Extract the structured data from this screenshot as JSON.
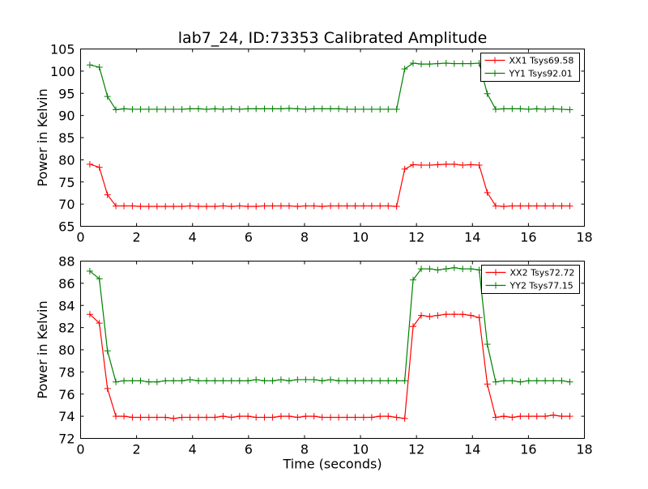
{
  "title": "lab7_24, ID:73353 Calibrated Amplitude",
  "chart_data": [
    {
      "type": "line",
      "xlabel": "",
      "ylabel": "Power in Kelvin",
      "xlim": [
        0,
        18
      ],
      "ylim": [
        65,
        105
      ],
      "xticks": [
        0,
        2,
        4,
        6,
        8,
        10,
        12,
        14,
        16,
        18
      ],
      "yticks": [
        65,
        70,
        75,
        80,
        85,
        90,
        95,
        100,
        105
      ],
      "grid": false,
      "legend_position": "top-right",
      "x": [
        0.33,
        0.67,
        0.96,
        1.26,
        1.55,
        1.85,
        2.14,
        2.44,
        2.73,
        3.03,
        3.32,
        3.62,
        3.91,
        4.21,
        4.5,
        4.8,
        5.09,
        5.39,
        5.68,
        5.98,
        6.27,
        6.57,
        6.86,
        7.16,
        7.45,
        7.75,
        8.04,
        8.34,
        8.63,
        8.93,
        9.22,
        9.52,
        9.81,
        10.11,
        10.4,
        10.7,
        10.99,
        11.29,
        11.58,
        11.88,
        12.17,
        12.47,
        12.76,
        13.06,
        13.35,
        13.65,
        13.94,
        14.24,
        14.53,
        14.83,
        15.12,
        15.42,
        15.71,
        16.01,
        16.3,
        16.6,
        16.89,
        17.19,
        17.48
      ],
      "series": [
        {
          "name": "XX1 Tsys69.58",
          "color": "#ff0000",
          "values": [
            79.0,
            78.3,
            72.1,
            69.6,
            69.6,
            69.6,
            69.5,
            69.5,
            69.5,
            69.5,
            69.5,
            69.5,
            69.6,
            69.5,
            69.5,
            69.5,
            69.6,
            69.5,
            69.6,
            69.5,
            69.5,
            69.6,
            69.6,
            69.6,
            69.6,
            69.5,
            69.6,
            69.6,
            69.5,
            69.6,
            69.6,
            69.6,
            69.6,
            69.6,
            69.6,
            69.6,
            69.6,
            69.5,
            77.9,
            78.9,
            78.8,
            78.8,
            78.9,
            79.0,
            79.0,
            78.8,
            78.9,
            78.8,
            72.6,
            69.6,
            69.5,
            69.6,
            69.6,
            69.6,
            69.6,
            69.6,
            69.6,
            69.6,
            69.6
          ]
        },
        {
          "name": "YY1 Tsys92.01",
          "color": "#008000",
          "values": [
            101.4,
            100.9,
            94.3,
            91.3,
            91.5,
            91.4,
            91.4,
            91.4,
            91.4,
            91.4,
            91.4,
            91.4,
            91.5,
            91.5,
            91.4,
            91.5,
            91.4,
            91.5,
            91.4,
            91.5,
            91.5,
            91.5,
            91.5,
            91.5,
            91.6,
            91.5,
            91.4,
            91.5,
            91.5,
            91.5,
            91.5,
            91.4,
            91.4,
            91.4,
            91.4,
            91.4,
            91.4,
            91.4,
            100.5,
            101.8,
            101.6,
            101.6,
            101.7,
            101.8,
            101.7,
            101.7,
            101.7,
            101.8,
            94.9,
            91.4,
            91.5,
            91.5,
            91.5,
            91.4,
            91.5,
            91.4,
            91.5,
            91.4,
            91.3
          ]
        }
      ]
    },
    {
      "type": "line",
      "xlabel": "Time (seconds)",
      "ylabel": "Power in Kelvin",
      "xlim": [
        0,
        18
      ],
      "ylim": [
        72,
        88
      ],
      "xticks": [
        0,
        2,
        4,
        6,
        8,
        10,
        12,
        14,
        16,
        18
      ],
      "yticks": [
        72,
        74,
        76,
        78,
        80,
        82,
        84,
        86,
        88
      ],
      "grid": false,
      "legend_position": "top-right",
      "x": [
        0.33,
        0.67,
        0.96,
        1.26,
        1.55,
        1.85,
        2.14,
        2.44,
        2.73,
        3.03,
        3.32,
        3.62,
        3.91,
        4.21,
        4.5,
        4.8,
        5.09,
        5.39,
        5.68,
        5.98,
        6.27,
        6.57,
        6.86,
        7.16,
        7.45,
        7.75,
        8.04,
        8.34,
        8.63,
        8.93,
        9.22,
        9.52,
        9.81,
        10.11,
        10.4,
        10.7,
        10.99,
        11.29,
        11.58,
        11.88,
        12.17,
        12.47,
        12.76,
        13.06,
        13.35,
        13.65,
        13.94,
        14.24,
        14.53,
        14.83,
        15.12,
        15.42,
        15.71,
        16.01,
        16.3,
        16.6,
        16.89,
        17.19,
        17.48
      ],
      "series": [
        {
          "name": "XX2 Tsys72.72",
          "color": "#ff0000",
          "values": [
            83.2,
            82.4,
            76.5,
            74.0,
            74.0,
            73.9,
            73.9,
            73.9,
            73.9,
            73.9,
            73.8,
            73.9,
            73.9,
            73.9,
            73.9,
            73.9,
            74.0,
            73.9,
            74.0,
            74.0,
            73.9,
            73.9,
            73.9,
            74.0,
            74.0,
            73.9,
            74.0,
            74.0,
            73.9,
            73.9,
            73.9,
            73.9,
            73.9,
            73.9,
            73.9,
            74.0,
            74.0,
            73.9,
            73.8,
            82.1,
            83.1,
            83.0,
            83.1,
            83.2,
            83.2,
            83.2,
            83.1,
            82.9,
            76.9,
            73.9,
            74.0,
            73.9,
            74.0,
            74.0,
            74.0,
            74.0,
            74.1,
            74.0,
            74.0
          ]
        },
        {
          "name": "YY2 Tsys77.15",
          "color": "#008000",
          "values": [
            87.1,
            86.4,
            79.9,
            77.1,
            77.2,
            77.2,
            77.2,
            77.1,
            77.1,
            77.2,
            77.2,
            77.2,
            77.3,
            77.2,
            77.2,
            77.2,
            77.2,
            77.2,
            77.2,
            77.2,
            77.3,
            77.2,
            77.2,
            77.3,
            77.2,
            77.3,
            77.3,
            77.3,
            77.2,
            77.3,
            77.2,
            77.2,
            77.2,
            77.2,
            77.2,
            77.2,
            77.2,
            77.2,
            77.2,
            86.3,
            87.3,
            87.3,
            87.2,
            87.3,
            87.4,
            87.3,
            87.3,
            87.2,
            80.5,
            77.1,
            77.2,
            77.2,
            77.1,
            77.2,
            77.2,
            77.2,
            77.2,
            77.2,
            77.1
          ]
        }
      ]
    }
  ]
}
